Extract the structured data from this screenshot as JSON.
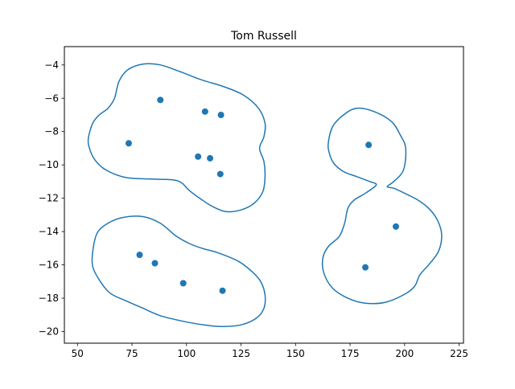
{
  "chart_data": {
    "type": "scatter",
    "title": "Tom Russell",
    "xlabel": "",
    "ylabel": "",
    "xlim": [
      44,
      227
    ],
    "ylim": [
      -20.7,
      -2.9
    ],
    "xticks": [
      50,
      75,
      100,
      125,
      150,
      175,
      200,
      225
    ],
    "yticks": [
      -4,
      -6,
      -8,
      -10,
      -12,
      -14,
      -16,
      -18,
      -20
    ],
    "xtick_labels": [
      "50",
      "75",
      "100",
      "125",
      "150",
      "175",
      "200",
      "225"
    ],
    "ytick_labels": [
      "−4",
      "−6",
      "−8",
      "−10",
      "−12",
      "−14",
      "−16",
      "−18",
      "−20"
    ],
    "grid": false,
    "series": [
      {
        "color": "#1f77b4",
        "points": [
          {
            "x": 88.0,
            "y": -6.1
          },
          {
            "x": 108.5,
            "y": -6.8
          },
          {
            "x": 115.8,
            "y": -7.0
          },
          {
            "x": 73.5,
            "y": -8.7
          },
          {
            "x": 105.3,
            "y": -9.5
          },
          {
            "x": 110.8,
            "y": -9.6
          },
          {
            "x": 115.5,
            "y": -10.55
          },
          {
            "x": 78.5,
            "y": -15.4
          },
          {
            "x": 85.5,
            "y": -15.9
          },
          {
            "x": 98.5,
            "y": -17.1
          },
          {
            "x": 116.5,
            "y": -17.55
          },
          {
            "x": 183.5,
            "y": -8.8
          },
          {
            "x": 196.0,
            "y": -13.7
          },
          {
            "x": 182.0,
            "y": -16.15
          }
        ]
      }
    ],
    "contours": [
      {
        "name": "group-1",
        "color": "#1f77b4",
        "path": [
          [
            55,
            -8.4
          ],
          [
            57,
            -7.5
          ],
          [
            60,
            -7.0
          ],
          [
            64,
            -6.6
          ],
          [
            67,
            -6.0
          ],
          [
            69,
            -5.0
          ],
          [
            73,
            -4.3
          ],
          [
            80,
            -3.95
          ],
          [
            88,
            -4.0
          ],
          [
            97,
            -4.4
          ],
          [
            107,
            -4.9
          ],
          [
            117,
            -5.3
          ],
          [
            126,
            -5.8
          ],
          [
            133,
            -6.6
          ],
          [
            136,
            -7.5
          ],
          [
            135.5,
            -8.3
          ],
          [
            133.5,
            -9.0
          ],
          [
            135.5,
            -9.8
          ],
          [
            136,
            -10.7
          ],
          [
            135,
            -11.6
          ],
          [
            131,
            -12.3
          ],
          [
            125,
            -12.7
          ],
          [
            118,
            -12.8
          ],
          [
            112,
            -12.5
          ],
          [
            106,
            -12.0
          ],
          [
            101,
            -11.5
          ],
          [
            98,
            -11.1
          ],
          [
            94,
            -10.9
          ],
          [
            84,
            -10.85
          ],
          [
            72,
            -10.75
          ],
          [
            63,
            -10.3
          ],
          [
            58,
            -9.7
          ],
          [
            55.5,
            -9.0
          ],
          [
            55,
            -8.4
          ]
        ]
      },
      {
        "name": "group-2",
        "color": "#1f77b4",
        "path": [
          [
            57,
            -15.2
          ],
          [
            59,
            -14.1
          ],
          [
            64,
            -13.5
          ],
          [
            71,
            -13.15
          ],
          [
            80,
            -13.1
          ],
          [
            88,
            -13.5
          ],
          [
            95,
            -14.25
          ],
          [
            101,
            -14.7
          ],
          [
            107,
            -15.0
          ],
          [
            115,
            -15.3
          ],
          [
            124,
            -15.8
          ],
          [
            130,
            -16.4
          ],
          [
            134,
            -17.0
          ],
          [
            136,
            -17.8
          ],
          [
            135.5,
            -18.6
          ],
          [
            132,
            -19.2
          ],
          [
            125,
            -19.6
          ],
          [
            116,
            -19.7
          ],
          [
            108,
            -19.6
          ],
          [
            99,
            -19.4
          ],
          [
            88,
            -19.05
          ],
          [
            80,
            -18.6
          ],
          [
            73,
            -18.2
          ],
          [
            65,
            -17.7
          ],
          [
            60,
            -16.9
          ],
          [
            57,
            -16.1
          ],
          [
            57,
            -15.2
          ]
        ]
      },
      {
        "name": "group-3",
        "color": "#1f77b4",
        "path": [
          [
            165,
            -8.7
          ],
          [
            167,
            -7.7
          ],
          [
            172,
            -7.0
          ],
          [
            178,
            -6.6
          ],
          [
            186,
            -6.8
          ],
          [
            194,
            -7.4
          ],
          [
            198,
            -8.2
          ],
          [
            200.5,
            -9.0
          ],
          [
            199.5,
            -10.3
          ],
          [
            195,
            -11.0
          ],
          [
            192,
            -11.3
          ],
          [
            195,
            -11.4
          ],
          [
            200,
            -11.7
          ],
          [
            206,
            -12.1
          ],
          [
            211,
            -12.6
          ],
          [
            215,
            -13.3
          ],
          [
            217,
            -14.2
          ],
          [
            215.5,
            -15.2
          ],
          [
            211,
            -16.0
          ],
          [
            207,
            -16.6
          ],
          [
            204.5,
            -17.3
          ],
          [
            199.5,
            -17.8
          ],
          [
            191,
            -18.25
          ],
          [
            182,
            -18.3
          ],
          [
            174,
            -18.0
          ],
          [
            167,
            -17.4
          ],
          [
            163,
            -16.5
          ],
          [
            162.5,
            -15.6
          ],
          [
            165,
            -14.9
          ],
          [
            170,
            -14.3
          ],
          [
            172.5,
            -13.5
          ],
          [
            174,
            -12.6
          ],
          [
            177,
            -12.1
          ],
          [
            182,
            -11.7
          ],
          [
            187,
            -11.2
          ],
          [
            184,
            -11.0
          ],
          [
            178,
            -10.7
          ],
          [
            172,
            -10.4
          ],
          [
            167.5,
            -9.9
          ],
          [
            165.5,
            -9.3
          ],
          [
            165,
            -8.7
          ]
        ]
      }
    ]
  }
}
